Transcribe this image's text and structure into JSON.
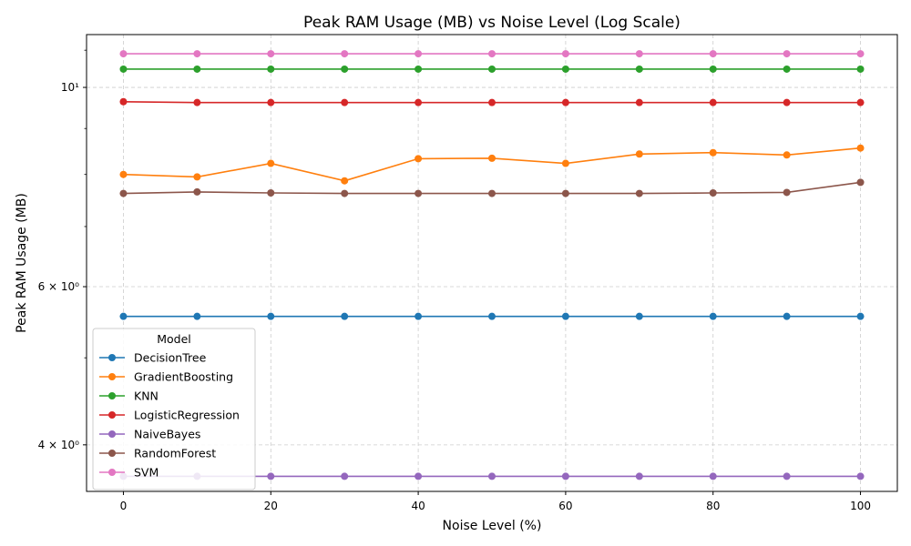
{
  "chart_data": {
    "type": "line",
    "title": "Peak RAM Usage (MB) vs Noise Level (Log Scale)",
    "xlabel": "Noise Level (%)",
    "ylabel": "Peak RAM Usage (MB)",
    "x": [
      0,
      10,
      20,
      30,
      40,
      50,
      60,
      70,
      80,
      90,
      100
    ],
    "xlim": [
      -5,
      105
    ],
    "xticks": [
      0,
      20,
      40,
      60,
      80,
      100
    ],
    "yscale": "log",
    "ylim": [
      3.55,
      11.45
    ],
    "yticks": [
      4,
      6,
      10
    ],
    "ytick_labels": [
      "4 × 10⁰",
      "6 × 10⁰",
      "10¹"
    ],
    "grid": true,
    "legend_title": "Model",
    "legend_position": "lower-left",
    "series": [
      {
        "name": "DecisionTree",
        "color": "#1f77b4",
        "values": [
          5.56,
          5.56,
          5.56,
          5.56,
          5.56,
          5.56,
          5.56,
          5.56,
          5.56,
          5.56,
          5.56
        ]
      },
      {
        "name": "GradientBoosting",
        "color": "#ff7f0e",
        "values": [
          8.0,
          7.95,
          8.23,
          7.87,
          8.33,
          8.34,
          8.23,
          8.43,
          8.46,
          8.41,
          8.56
        ]
      },
      {
        "name": "KNN",
        "color": "#2ca02c",
        "values": [
          10.48,
          10.48,
          10.48,
          10.48,
          10.48,
          10.48,
          10.48,
          10.48,
          10.48,
          10.48,
          10.48
        ]
      },
      {
        "name": "LogisticRegression",
        "color": "#d62728",
        "values": [
          9.64,
          9.62,
          9.62,
          9.62,
          9.62,
          9.62,
          9.62,
          9.62,
          9.62,
          9.62,
          9.62
        ]
      },
      {
        "name": "NaiveBayes",
        "color": "#9467bd",
        "values": [
          3.69,
          3.69,
          3.69,
          3.69,
          3.69,
          3.69,
          3.69,
          3.69,
          3.69,
          3.69,
          3.69
        ]
      },
      {
        "name": "RandomForest",
        "color": "#8c564b",
        "values": [
          7.62,
          7.65,
          7.63,
          7.62,
          7.62,
          7.62,
          7.62,
          7.62,
          7.63,
          7.64,
          7.84
        ]
      },
      {
        "name": "SVM",
        "color": "#e377c2",
        "values": [
          10.9,
          10.9,
          10.9,
          10.9,
          10.9,
          10.9,
          10.9,
          10.9,
          10.9,
          10.9,
          10.9
        ]
      }
    ]
  }
}
